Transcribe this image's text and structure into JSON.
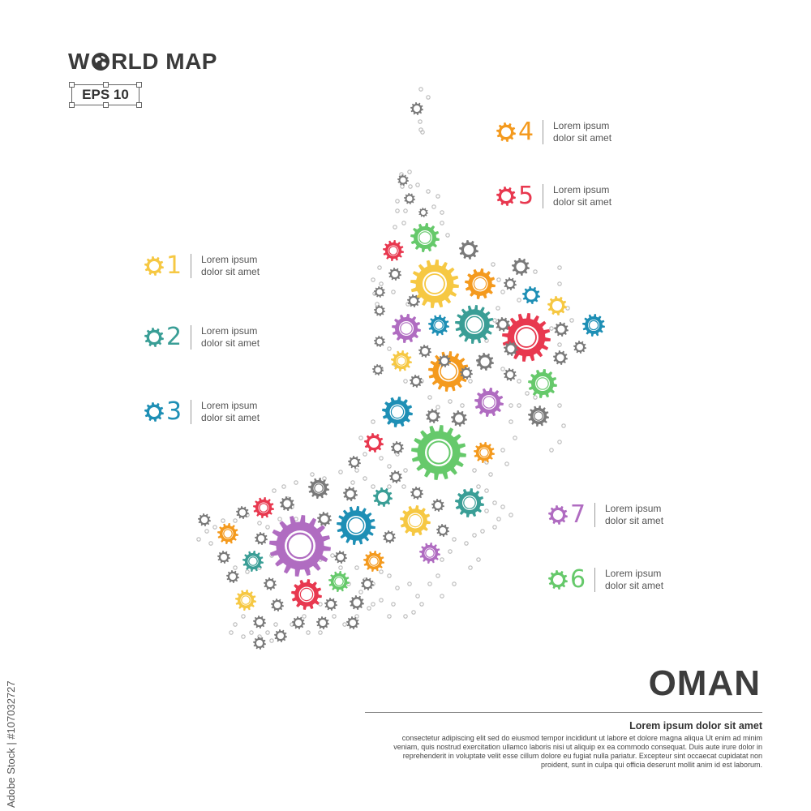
{
  "brand": {
    "title_before": "W",
    "title_after": "RLD MAP",
    "badge": "EPS 10"
  },
  "country": {
    "name": "OMAN"
  },
  "colors": {
    "yellow": "#f6c843",
    "teal": "#3a9e96",
    "blue": "#1e8fb5",
    "orange": "#f49a1e",
    "red": "#e8384f",
    "purple": "#b06cc1",
    "green": "#66c96b",
    "gray": "#7a7a7a",
    "dot": "#b9b9b9"
  },
  "legend": [
    {
      "number": "1",
      "line1": "Lorem ipsum",
      "line2": "dolor sit amet",
      "color": "#f6c843",
      "icon": "gear-icon"
    },
    {
      "number": "2",
      "line1": "Lorem ipsum",
      "line2": "dolor sit amet",
      "color": "#3a9e96",
      "icon": "gear-icon"
    },
    {
      "number": "3",
      "line1": "Lorem ipsum",
      "line2": "dolor sit amet",
      "color": "#1e8fb5",
      "icon": "gear-icon"
    },
    {
      "number": "4",
      "line1": "Lorem ipsum",
      "line2": "dolor sit amet",
      "color": "#f49a1e",
      "icon": "gear-icon"
    },
    {
      "number": "5",
      "line1": "Lorem ipsum",
      "line2": "dolor sit amet",
      "color": "#e8384f",
      "icon": "gear-icon"
    },
    {
      "number": "7",
      "line1": "Lorem ipsum",
      "line2": "dolor sit amet",
      "color": "#b06cc1",
      "icon": "gear-icon"
    },
    {
      "number": "6",
      "line1": "Lorem ipsum",
      "line2": "dolor sit amet",
      "color": "#66c96b",
      "icon": "gear-icon"
    }
  ],
  "description": {
    "title": "Lorem ipsum dolor sit amet",
    "line1": "consectetur adipiscing elit  sed do eiusmod tempor incididunt ut labore et dolore magna aliqua  Ut enim ad minim",
    "line2": "veniam, quis nostrud exercitation ullamco laboris nisi ut aliquip ex ea commodo consequat. Duis aute irure dolor in",
    "line3": "reprehenderit in voluptate velit esse cillum dolore eu fugiat nulla pariatur. Excepteur sint occaecat cupidatat non",
    "line4": "proident, sunt in culpa qui officia deserunt mollit anim id est laborum."
  },
  "stock_id": "Adobe Stock | #107032727"
}
